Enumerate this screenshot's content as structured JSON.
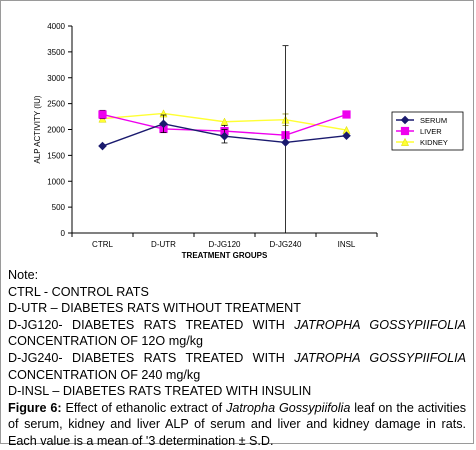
{
  "chart_data": {
    "type": "line",
    "title": "",
    "xlabel": "TREATMENT GROUPS",
    "ylabel": "ALP ACTIVITY (IU)",
    "categories": [
      "CTRL",
      "D-UTR",
      "D-JG120",
      "D-JG240",
      "INSL"
    ],
    "ylim": [
      0,
      4000
    ],
    "yticks": [
      0,
      500,
      1000,
      1500,
      2000,
      2500,
      3000,
      3500,
      4000
    ],
    "grid": false,
    "legend_position": "right",
    "series": [
      {
        "name": "SERUM",
        "color": "#1a1a6e",
        "marker": "diamond",
        "values": [
          1680,
          2110,
          1870,
          1750,
          1880
        ],
        "errors": [
          null,
          170,
          130,
          1870,
          null
        ]
      },
      {
        "name": "LIVER",
        "color": "#ee00ee",
        "marker": "square",
        "values": [
          2290,
          2010,
          1970,
          1890,
          2290
        ],
        "errors": [
          80,
          null,
          110,
          null,
          null
        ]
      },
      {
        "name": "KIDNEY",
        "color": "#ffff33",
        "marker": "triangle",
        "values": [
          2210,
          2310,
          2150,
          2190,
          1990
        ],
        "errors": [
          null,
          null,
          null,
          110,
          null
        ]
      }
    ]
  },
  "caption": {
    "note_heading": "Note:",
    "note_lines": [
      "CTRL - CONTROL RATS",
      "D-UTR – DIABETES RATS WITHOUT TREATMENT"
    ],
    "jg120_a": "D-JG120- DIABETES RATS TREATED WITH ",
    "jg120_species": "JATROPHA GOSSYPIIFOLIA",
    "jg120_b": "CONCENTRATION OF 12O mg/kg",
    "jg240_a": "D-JG240- DIABETES RATS TREATED WITH ",
    "jg240_species": "JATROPHA GOSSYPIIFOLIA",
    "jg240_b": "CONCENTRATION OF 240 mg/kg",
    "insl": "D-INSL – DIABETES RATS TREATED WITH INSULIN",
    "figure_label": "Figure 6:",
    "figure_text_1": " Effect of ethanolic extract of ",
    "figure_species": "Jatropha Gossypiifolia",
    "figure_text_2": " leaf on the activities of serum, kidney and liver ALP of serum and liver and kidney damage in rats. Each value is a mean of '3 determination ± S.D."
  }
}
